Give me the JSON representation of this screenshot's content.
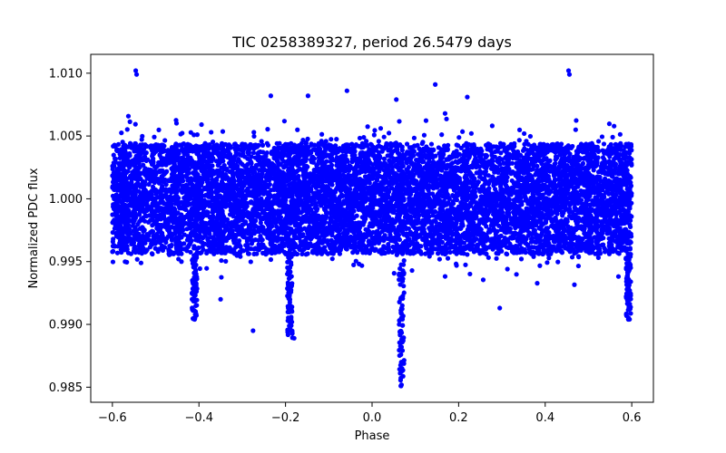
{
  "chart_data": {
    "type": "scatter",
    "title": "TIC 0258389327, period 26.5479 days",
    "xlabel": "Phase",
    "ylabel": "Normalized PDC flux",
    "xlim": [
      -0.65,
      0.65
    ],
    "ylim": [
      0.9838,
      1.0115
    ],
    "xticks": [
      -0.6,
      -0.4,
      -0.2,
      0.0,
      0.2,
      0.4,
      0.6
    ],
    "xtick_labels": [
      "−0.6",
      "−0.4",
      "−0.2",
      "0.0",
      "0.2",
      "0.4",
      "0.6"
    ],
    "yticks": [
      0.985,
      0.99,
      0.995,
      1.0,
      1.005,
      1.01
    ],
    "ytick_labels": [
      "0.985",
      "0.990",
      "0.995",
      "1.000",
      "1.005",
      "1.010"
    ],
    "grid": false,
    "marker_color": "#0000ff",
    "series": [
      {
        "name": "PDC flux",
        "phase_range": [
          -0.6,
          0.6
        ],
        "baseline": 1.0,
        "typical_scatter_band": [
          0.9955,
          1.0048
        ],
        "points": [
          {
            "x": -0.546,
            "y": 1.0102
          },
          {
            "x": -0.544,
            "y": 1.0099
          },
          {
            "x": 0.454,
            "y": 1.0102
          },
          {
            "x": 0.456,
            "y": 1.0099
          },
          {
            "x": 0.146,
            "y": 1.0091
          },
          {
            "x": -0.058,
            "y": 1.0086
          },
          {
            "x": -0.234,
            "y": 1.0082
          },
          {
            "x": -0.148,
            "y": 1.0082
          },
          {
            "x": 0.22,
            "y": 1.0081
          },
          {
            "x": 0.056,
            "y": 1.0079
          },
          {
            "x": 0.067,
            "y": 0.9851
          },
          {
            "x": 0.068,
            "y": 0.987
          },
          {
            "x": 0.069,
            "y": 0.9865
          },
          {
            "x": 0.068,
            "y": 0.9882
          },
          {
            "x": -0.41,
            "y": 0.9904
          },
          {
            "x": 0.592,
            "y": 0.9904
          },
          {
            "x": -0.18,
            "y": 0.9889
          },
          {
            "x": -0.275,
            "y": 0.9895
          },
          {
            "x": 0.295,
            "y": 0.9913
          },
          {
            "x": -0.35,
            "y": 0.992
          }
        ]
      }
    ],
    "dip_features": [
      {
        "phase": 0.068,
        "min_flux": 0.9851
      },
      {
        "phase": -0.41,
        "min_flux": 0.9904
      },
      {
        "phase": -0.19,
        "min_flux": 0.9889
      },
      {
        "phase": 0.592,
        "min_flux": 0.9904
      }
    ]
  }
}
